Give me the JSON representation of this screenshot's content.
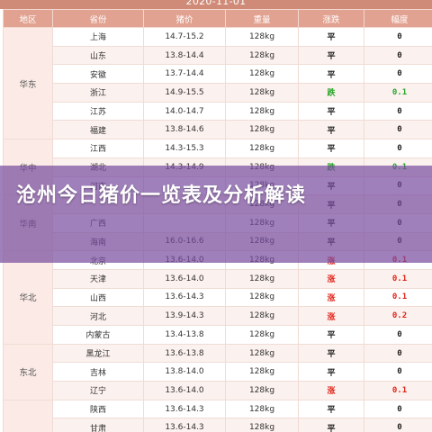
{
  "header": {
    "date": "2020-11-01"
  },
  "table": {
    "columns": [
      "地区",
      "省份",
      "猪价",
      "重量",
      "涨跌",
      "幅度"
    ],
    "regions": [
      {
        "name": "华东",
        "rows": [
          {
            "province": "上海",
            "price": "14.7-15.2",
            "weight": "128kg",
            "trend": "平",
            "change": "0"
          },
          {
            "province": "山东",
            "price": "13.8-14.4",
            "weight": "128kg",
            "trend": "平",
            "change": "0"
          },
          {
            "province": "安徽",
            "price": "13.7-14.4",
            "weight": "128kg",
            "trend": "平",
            "change": "0"
          },
          {
            "province": "浙江",
            "price": "14.9-15.5",
            "weight": "128kg",
            "trend": "跌",
            "change": "0.1"
          },
          {
            "province": "江苏",
            "price": "14.0-14.7",
            "weight": "128kg",
            "trend": "平",
            "change": "0"
          },
          {
            "province": "福建",
            "price": "13.8-14.6",
            "weight": "128kg",
            "trend": "平",
            "change": "0"
          }
        ]
      },
      {
        "name": "华中",
        "rows": [
          {
            "province": "江西",
            "price": "14.3-15.3",
            "weight": "128kg",
            "trend": "平",
            "change": "0"
          },
          {
            "province": "湖北",
            "price": "14.3-14.9",
            "weight": "128kg",
            "trend": "跌",
            "change": "0.1"
          },
          {
            "province": "河南",
            "price": "",
            "weight": "128kg",
            "trend": "平",
            "change": "0"
          }
        ]
      },
      {
        "name": "华南",
        "rows": [
          {
            "province": "",
            "price": "",
            "weight": "128kg",
            "trend": "平",
            "change": "0"
          },
          {
            "province": "广西",
            "price": "",
            "weight": "128kg",
            "trend": "平",
            "change": "0"
          },
          {
            "province": "海南",
            "price": "16.0-16.6",
            "weight": "128kg",
            "trend": "平",
            "change": "0"
          }
        ]
      },
      {
        "name": "华北",
        "rows": [
          {
            "province": "北京",
            "price": "13.6-14.0",
            "weight": "128kg",
            "trend": "涨",
            "change": "0.1"
          },
          {
            "province": "天津",
            "price": "13.6-14.0",
            "weight": "128kg",
            "trend": "涨",
            "change": "0.1"
          },
          {
            "province": "山西",
            "price": "13.6-14.3",
            "weight": "128kg",
            "trend": "涨",
            "change": "0.1"
          },
          {
            "province": "河北",
            "price": "13.9-14.3",
            "weight": "128kg",
            "trend": "涨",
            "change": "0.2"
          },
          {
            "province": "内蒙古",
            "price": "13.4-13.8",
            "weight": "128kg",
            "trend": "平",
            "change": "0"
          }
        ]
      },
      {
        "name": "东北",
        "rows": [
          {
            "province": "黑龙江",
            "price": "13.6-13.8",
            "weight": "128kg",
            "trend": "平",
            "change": "0"
          },
          {
            "province": "吉林",
            "price": "13.8-14.0",
            "weight": "128kg",
            "trend": "平",
            "change": "0"
          },
          {
            "province": "辽宁",
            "price": "13.6-14.0",
            "weight": "128kg",
            "trend": "涨",
            "change": "0.1"
          }
        ]
      },
      {
        "name": "",
        "rows": [
          {
            "province": "陕西",
            "price": "13.6-14.3",
            "weight": "128kg",
            "trend": "平",
            "change": "0"
          },
          {
            "province": "甘肃",
            "price": "13.6-14.3",
            "weight": "128kg",
            "trend": "平",
            "change": "0"
          }
        ]
      }
    ]
  },
  "banner": {
    "title": "沧州今日猪价一览表及分析解读"
  },
  "colors": {
    "header_bg": "#e2a291",
    "up": "#e0261b",
    "down": "#2aa52a",
    "flat": "#222222",
    "banner_overlay": "#764a9e"
  }
}
